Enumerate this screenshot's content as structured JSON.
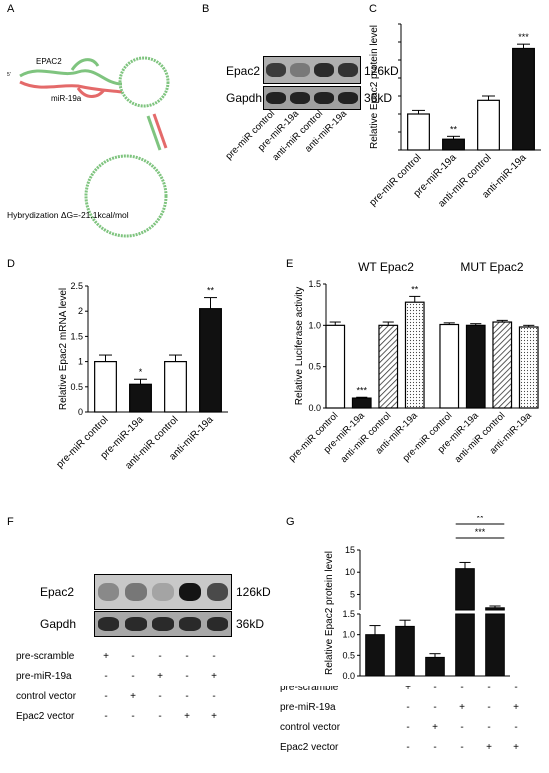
{
  "panels": {
    "A": {
      "letter": "A",
      "label_epac2": "EPAC2",
      "label_mir": "miR-19a",
      "label_small": "5'",
      "hybrid_text": "Hybrydization ΔG=-21.1kcal/mol"
    },
    "B": {
      "letter": "B",
      "rows": [
        "Epac2",
        "Gapdh"
      ],
      "sizes": [
        "126kD",
        "36kD"
      ],
      "lanes": [
        "pre-miR control",
        "pre-miR-19a",
        "anti-miR control",
        "anti-miR-19a"
      ],
      "band_intensity": {
        "Epac2": [
          0.75,
          0.35,
          0.85,
          0.8
        ],
        "Gapdh": [
          0.9,
          0.9,
          0.9,
          0.9
        ]
      }
    },
    "C": {
      "letter": "C"
    },
    "D": {
      "letter": "D"
    },
    "E": {
      "letter": "E",
      "group_titles": [
        "WT Epac2",
        "MUT Epac2"
      ]
    },
    "F": {
      "letter": "F",
      "rows": [
        "Epac2",
        "Gapdh"
      ],
      "sizes": [
        "126kD",
        "36kD"
      ],
      "band_intensity": {
        "Epac2": [
          0.35,
          0.45,
          0.2,
          1.0,
          0.7
        ],
        "Gapdh": [
          0.85,
          0.85,
          0.85,
          0.85,
          0.85
        ]
      },
      "conditions": [
        {
          "name": "pre-scramble",
          "marks": [
            "+",
            "-",
            "-",
            "-",
            "-"
          ]
        },
        {
          "name": "pre-miR-19a",
          "marks": [
            "-",
            "-",
            "+",
            "-",
            "+"
          ]
        },
        {
          "name": "control vector",
          "marks": [
            "-",
            "+",
            "-",
            "-",
            "-"
          ]
        },
        {
          "name": "Epac2 vector",
          "marks": [
            "-",
            "-",
            "-",
            "+",
            "+"
          ]
        }
      ]
    },
    "G": {
      "letter": "G",
      "conditions": [
        {
          "name": "pre-scramble",
          "marks": [
            "+",
            "-",
            "-",
            "-",
            "-"
          ]
        },
        {
          "name": "pre-miR-19a",
          "marks": [
            "-",
            "-",
            "+",
            "-",
            "+"
          ]
        },
        {
          "name": "control vector",
          "marks": [
            "-",
            "+",
            "-",
            "-",
            "-"
          ]
        },
        {
          "name": "Epac2 vector",
          "marks": [
            "-",
            "-",
            "-",
            "+",
            "+"
          ]
        }
      ]
    }
  },
  "chart_data": [
    {
      "id": "C",
      "type": "bar",
      "ylabel": "Relative Epac2 protein level",
      "categories": [
        "pre-miR control",
        "pre-miR-19a",
        "anti-miR control",
        "anti-miR-19a"
      ],
      "values": [
        1.0,
        0.3,
        1.38,
        2.82
      ],
      "errors": [
        0.1,
        0.08,
        0.12,
        0.12
      ],
      "fills": [
        "#ffffff",
        "#111111",
        "#ffffff",
        "#111111"
      ],
      "significance": [
        "",
        "**",
        "",
        "***"
      ],
      "ylim": [
        0,
        3.5
      ]
    },
    {
      "id": "D",
      "type": "bar",
      "ylabel": "Relative Epac2 mRNA level",
      "categories": [
        "pre-miR control",
        "pre-miR-19a",
        "anti-miR control",
        "anti-miR-19a"
      ],
      "values": [
        1.0,
        0.55,
        1.0,
        2.05
      ],
      "errors": [
        0.13,
        0.1,
        0.13,
        0.22
      ],
      "fills": [
        "#ffffff",
        "#111111",
        "#ffffff",
        "#111111"
      ],
      "significance": [
        "",
        "*",
        "",
        "**"
      ],
      "ylim": [
        0,
        2.5
      ],
      "yticks": [
        0,
        0.5,
        1,
        1.5,
        2,
        2.5
      ]
    },
    {
      "id": "E",
      "type": "bar",
      "ylabel": "Relative Luciferase activity",
      "categories": [
        "pre-miR control",
        "pre-miR-19a",
        "anti-miR control",
        "anti-miR-19a",
        "pre-miR control",
        "pre-miR-19a",
        "anti-miR control",
        "anti-miR-19a"
      ],
      "values": [
        1.0,
        0.12,
        1.0,
        1.28,
        1.01,
        1.0,
        1.04,
        0.98
      ],
      "errors": [
        0.04,
        0.01,
        0.04,
        0.07,
        0.02,
        0.02,
        0.02,
        0.02
      ],
      "fills": [
        "white",
        "black",
        "hatch",
        "dots",
        "white",
        "black",
        "hatch",
        "dots"
      ],
      "significance": [
        "",
        "***",
        "",
        "**",
        "",
        "",
        "",
        ""
      ],
      "ylim": [
        0,
        1.5
      ],
      "yticks": [
        0,
        0.5,
        1.0,
        1.5
      ]
    },
    {
      "id": "G",
      "type": "bar",
      "ylabel": "Relative Epac2 protein level",
      "values": [
        1.0,
        1.2,
        0.45,
        10.8,
        2.0
      ],
      "errors": [
        0.22,
        0.15,
        0.09,
        1.4,
        0.4
      ],
      "fills": [
        "#111111",
        "#111111",
        "#111111",
        "#111111",
        "#111111"
      ],
      "ylim_lower": [
        0,
        1.5
      ],
      "ylim_upper": [
        1.5,
        15
      ],
      "yticks_lower": [
        0,
        0.5,
        1.0,
        1.5
      ],
      "yticks_upper": [
        5,
        10,
        15
      ],
      "significance_brackets": [
        {
          "from": 3,
          "to": 4,
          "label": "***"
        },
        {
          "from": 3,
          "to": 4,
          "label": "**"
        }
      ]
    }
  ]
}
